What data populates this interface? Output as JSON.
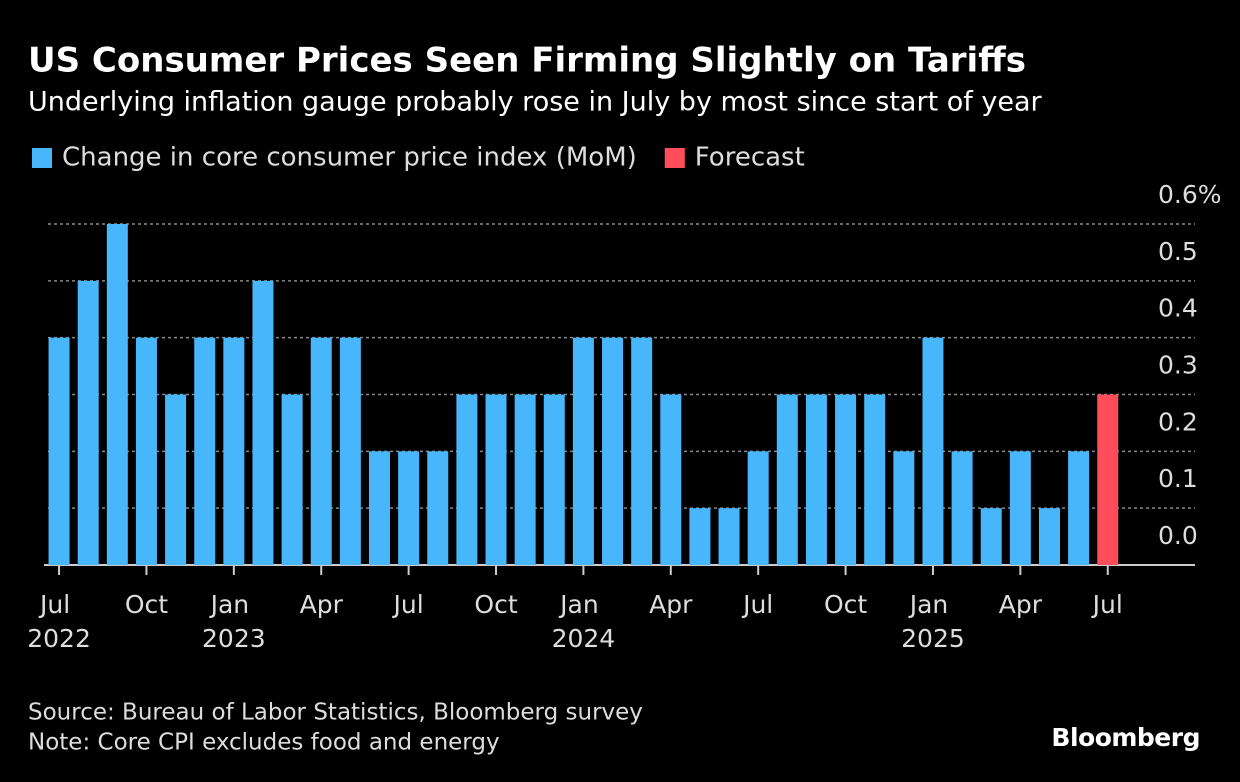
{
  "chart_data": {
    "type": "bar",
    "title": "US Consumer Prices Seen Firming Slightly on Tariffs",
    "subtitle": "Underlying inflation gauge probably rose in July by most since start of year",
    "categories": [
      "Jul 2022",
      null,
      null,
      "Oct",
      null,
      null,
      "Jan 2023",
      null,
      null,
      "Apr",
      null,
      null,
      "Jul",
      null,
      null,
      "Oct",
      null,
      null,
      "Jan 2024",
      null,
      null,
      "Apr",
      null,
      null,
      "Jul",
      null,
      null,
      "Oct",
      null,
      null,
      "Jan 2025",
      null,
      null,
      "Apr",
      null,
      null,
      "Jul"
    ],
    "series": [
      {
        "name": "Change in core consumer price index (MoM)",
        "color": "#48b6fb",
        "values": [
          0.4,
          0.5,
          0.6,
          0.4,
          0.3,
          0.4,
          0.4,
          0.5,
          0.3,
          0.4,
          0.4,
          0.2,
          0.2,
          0.2,
          0.3,
          0.3,
          0.3,
          0.3,
          0.4,
          0.4,
          0.4,
          0.3,
          0.1,
          0.1,
          0.2,
          0.3,
          0.3,
          0.3,
          0.3,
          0.2,
          0.4,
          0.2,
          0.1,
          0.2,
          0.1,
          0.2,
          null
        ]
      },
      {
        "name": "Forecast",
        "color": "#ff4d5b",
        "values": [
          null,
          null,
          null,
          null,
          null,
          null,
          null,
          null,
          null,
          null,
          null,
          null,
          null,
          null,
          null,
          null,
          null,
          null,
          null,
          null,
          null,
          null,
          null,
          null,
          null,
          null,
          null,
          null,
          null,
          null,
          null,
          null,
          null,
          null,
          null,
          null,
          0.3
        ]
      }
    ],
    "ylim": [
      0,
      0.6
    ],
    "yticks": [
      {
        "value": 0,
        "label": "0.0"
      },
      0.1,
      0.2,
      0.3,
      0.4,
      0.5,
      {
        "value": 0.6,
        "label": "0.6%"
      }
    ],
    "grid": true,
    "source": "Source: Bureau of Labor Statistics, Bloomberg survey",
    "note": "Note: Core CPI excludes food and energy",
    "brand": "Bloomberg"
  }
}
